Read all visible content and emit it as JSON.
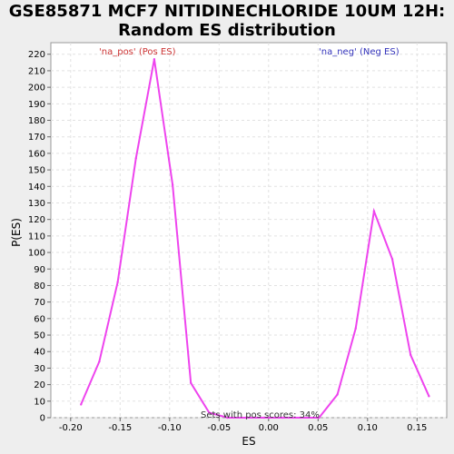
{
  "title_line1": "GSE85871 MCF7 NITIDINECHLORIDE 10UM 12H:",
  "title_line2": "Random ES distribution",
  "colors": {
    "line": "#ee44ee",
    "pos_label": "#cc3333",
    "neg_label": "#3333bb",
    "plot_bg": "#ffffff",
    "page_bg": "#eeeeee"
  },
  "chart_data": {
    "type": "line",
    "xlabel": "ES",
    "ylabel": "P(ES)",
    "xlim": [
      -0.22,
      0.18
    ],
    "ylim": [
      0,
      227
    ],
    "x_ticks": [
      "-0.20",
      "-0.15",
      "-0.10",
      "-0.05",
      "0.00",
      "0.05",
      "0.10",
      "0.15"
    ],
    "y_ticks": [
      0,
      10,
      20,
      30,
      40,
      50,
      60,
      70,
      80,
      90,
      100,
      110,
      120,
      130,
      140,
      150,
      160,
      170,
      180,
      190,
      200,
      210,
      220
    ],
    "grid": true,
    "annotations": {
      "pos_label": "'na_pos' (Pos ES)",
      "neg_label": "'na_neg' (Neg ES)",
      "note": "Sets with pos scores: 34%"
    },
    "series": [
      {
        "x": [
          -0.1895,
          -0.171,
          -0.1525,
          -0.134,
          -0.1155,
          -0.097,
          -0.0785,
          -0.06,
          -0.0415,
          -0.023,
          -0.0045,
          0.014,
          0.0325,
          0.051,
          0.0695,
          0.088,
          0.1065,
          0.125,
          0.1435,
          0.162
        ],
        "y": [
          8,
          34,
          82,
          157,
          217,
          141,
          21,
          3,
          0,
          0,
          0,
          0,
          0,
          0,
          14,
          54,
          125,
          96,
          38,
          13
        ]
      }
    ]
  }
}
